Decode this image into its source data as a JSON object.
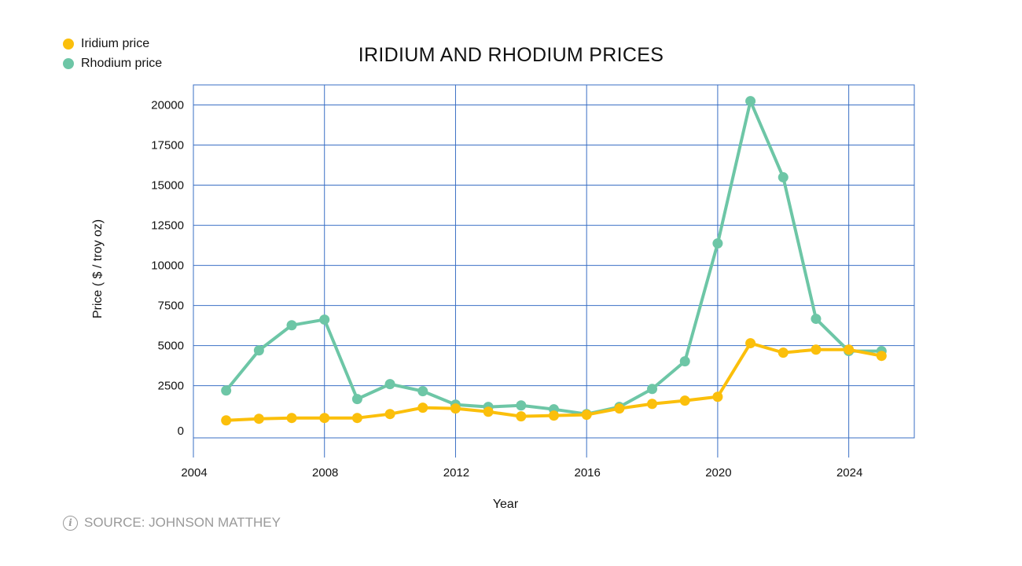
{
  "chart_data": {
    "type": "line",
    "title": "IRIDIUM AND RHODIUM PRICES",
    "xlabel": "Year",
    "ylabel": "Price ( $ / troy oz)",
    "xlim": [
      2004,
      2026
    ],
    "ylim": [
      -750,
      21250
    ],
    "xticks": [
      2004,
      2008,
      2012,
      2016,
      2020,
      2024
    ],
    "yticks": [
      0,
      2500,
      5000,
      7500,
      10000,
      12500,
      15000,
      17500,
      20000
    ],
    "grid": true,
    "legend": "top-left",
    "x": [
      2005,
      2006,
      2007,
      2008,
      2009,
      2010,
      2011,
      2012,
      2013,
      2014,
      2015,
      2016,
      2017,
      2018,
      2019,
      2020,
      2021,
      2022,
      2023,
      2024,
      2025
    ],
    "series": [
      {
        "name": "Iridium price",
        "color": "#FBBF0B",
        "values": [
          340,
          440,
          490,
          490,
          490,
          735,
          1130,
          1080,
          880,
          590,
          640,
          690,
          1080,
          1370,
          1570,
          1810,
          5150,
          4560,
          4750,
          4750,
          4360
        ]
      },
      {
        "name": "Rhodium price",
        "color": "#6DC6A6",
        "values": [
          2200,
          4700,
          6270,
          6620,
          1670,
          2600,
          2160,
          1320,
          1180,
          1270,
          1030,
          735,
          1180,
          2300,
          4020,
          11370,
          20240,
          15490,
          6670,
          4660,
          4660
        ]
      }
    ],
    "grid_color": "#3A6FC4"
  },
  "source": "SOURCE: JOHNSON MATTHEY",
  "source_icon": "info-icon"
}
